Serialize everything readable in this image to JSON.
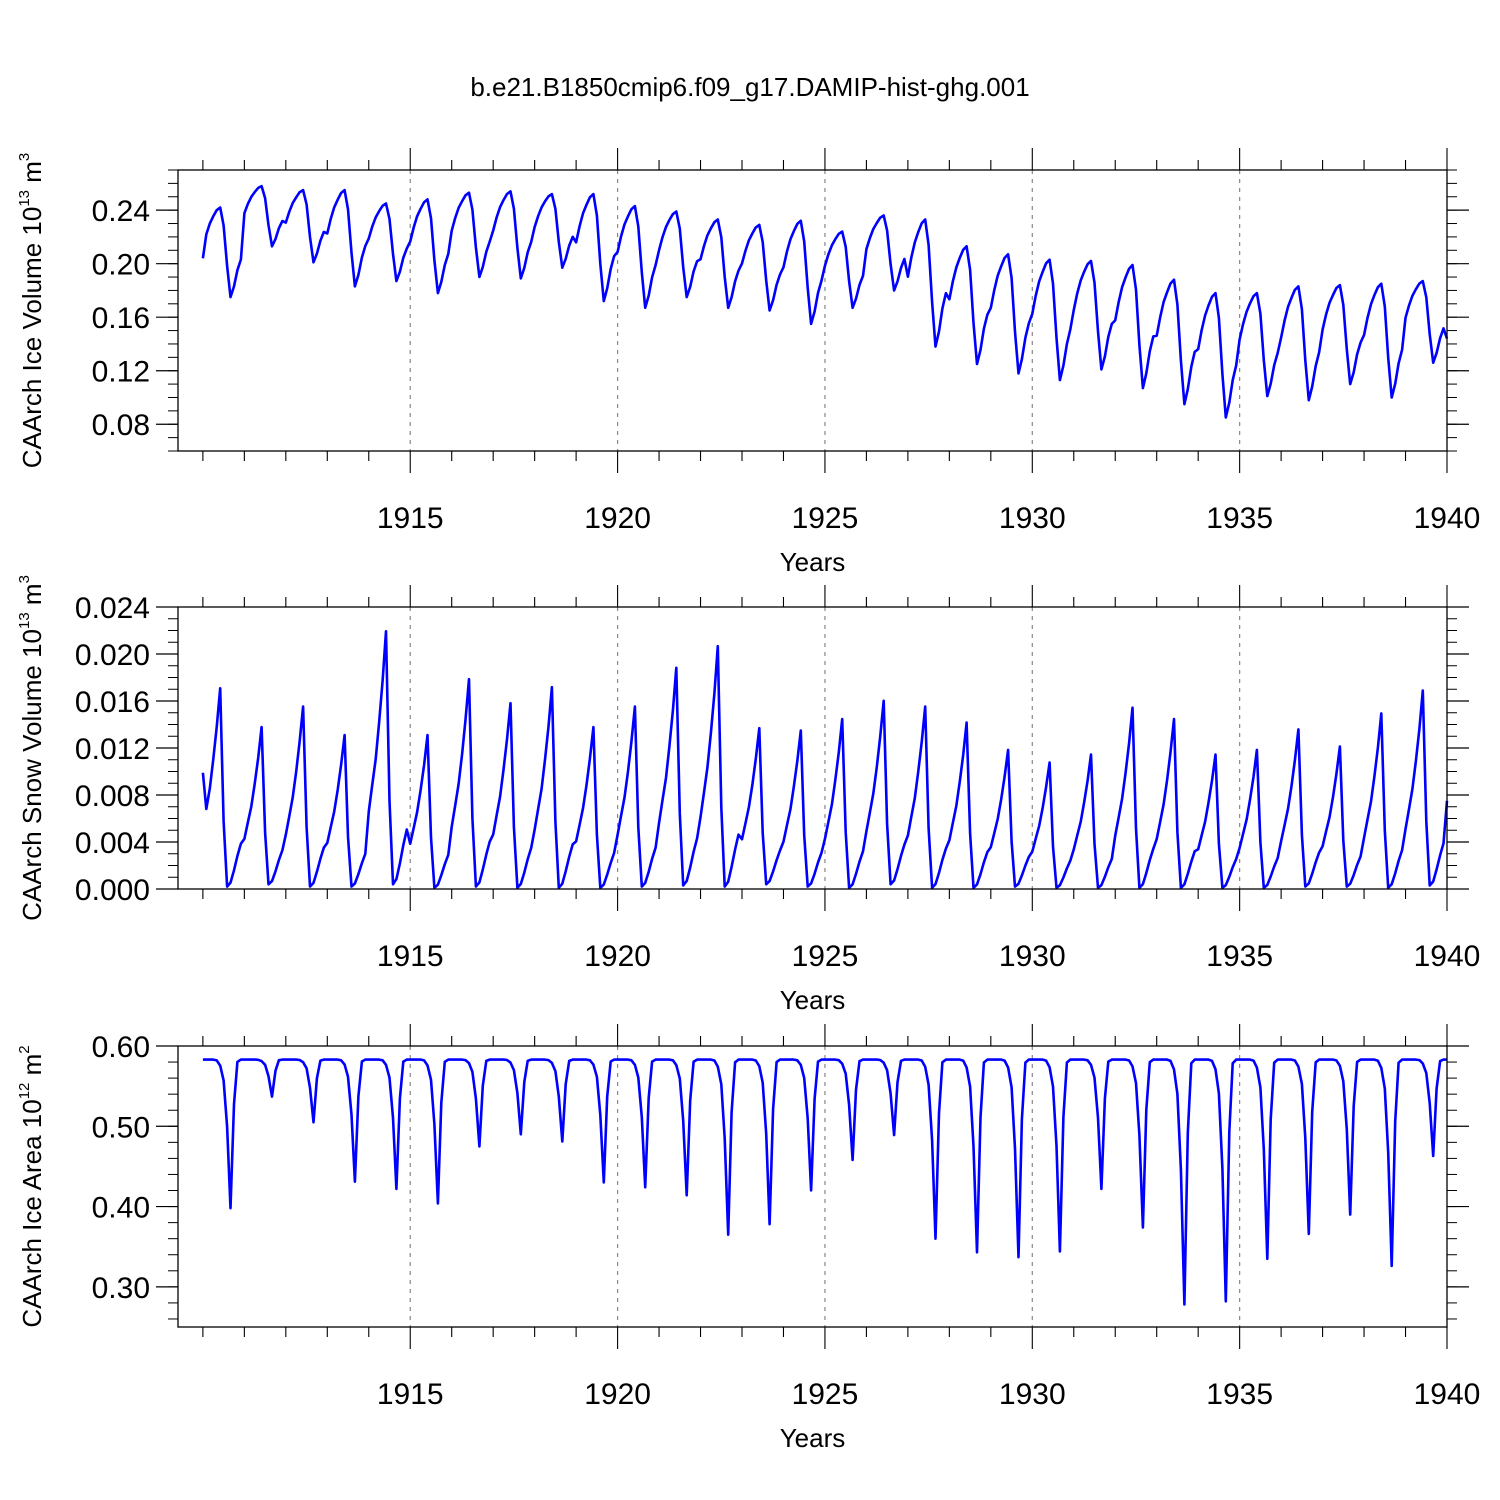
{
  "figure_title": "b.e21.B1850cmip6.f09_g17.DAMIP-hist-ghg.001",
  "chart_data": [
    {
      "type": "line",
      "title": "b.e21.B1850cmip6.f09_g17.DAMIP-hist-ghg.001",
      "xlabel": "Years",
      "ylabel_main": "CAArch Ice Volume 10",
      "ylabel_exp": "13",
      "ylabel_unit": " m",
      "ylabel_unit_exp": "3",
      "xlim": [
        1909.4,
        1940.0
      ],
      "ylim": [
        0.06,
        0.27
      ],
      "xticks": [
        1915,
        1920,
        1925,
        1930,
        1935,
        1940
      ],
      "xtick_labels": [
        "1915",
        "1920",
        "1925",
        "1930",
        "1935",
        "1940"
      ],
      "yticks": [
        0.08,
        0.12,
        0.16,
        0.2,
        0.24
      ],
      "ytick_labels": [
        "0.08",
        "0.12",
        "0.16",
        "0.20",
        "0.24"
      ],
      "minor_y_step": 0.01,
      "series": [
        {
          "name": "CAArch Ice Volume",
          "color": "#0000ff",
          "start_year": 1910.0,
          "annual_cycle": true,
          "annual_max": [
            0.242,
            0.258,
            0.255,
            0.255,
            0.245,
            0.248,
            0.253,
            0.254,
            0.252,
            0.252,
            0.243,
            0.239,
            0.233,
            0.229,
            0.232,
            0.224,
            0.236,
            0.233,
            0.213,
            0.207,
            0.203,
            0.202,
            0.199,
            0.188,
            0.178,
            0.178,
            0.183,
            0.184,
            0.185,
            0.187
          ],
          "annual_min": [
            0.175,
            0.213,
            0.201,
            0.183,
            0.187,
            0.178,
            0.19,
            0.189,
            0.197,
            0.172,
            0.167,
            0.175,
            0.167,
            0.165,
            0.155,
            0.167,
            0.18,
            0.138,
            0.125,
            0.118,
            0.113,
            0.121,
            0.107,
            0.095,
            0.085,
            0.101,
            0.098,
            0.11,
            0.1,
            0.126
          ],
          "start_value": 0.204,
          "end_value": 0.144
        }
      ]
    },
    {
      "type": "line",
      "title": "",
      "xlabel": "Years",
      "ylabel_main": "CAArch Snow Volume 10",
      "ylabel_exp": "13",
      "ylabel_unit": " m",
      "ylabel_unit_exp": "3",
      "xlim": [
        1909.4,
        1940.0
      ],
      "ylim": [
        0.0,
        0.024
      ],
      "xticks": [
        1915,
        1920,
        1925,
        1930,
        1935,
        1940
      ],
      "xtick_labels": [
        "1915",
        "1920",
        "1925",
        "1930",
        "1935",
        "1940"
      ],
      "yticks": [
        0.0,
        0.004,
        0.008,
        0.012,
        0.016,
        0.02,
        0.024
      ],
      "ytick_labels": [
        "0.000",
        "0.004",
        "0.008",
        "0.012",
        "0.016",
        "0.020",
        "0.024"
      ],
      "minor_y_step": 0.001,
      "series": [
        {
          "name": "CAArch Snow Volume",
          "color": "#0000ff",
          "start_year": 1910.0,
          "annual_cycle": true,
          "annual_max": [
            0.0176,
            0.0142,
            0.016,
            0.0135,
            0.0226,
            0.0135,
            0.0184,
            0.0163,
            0.0177,
            0.0142,
            0.016,
            0.0194,
            0.0213,
            0.0141,
            0.0139,
            0.0149,
            0.0165,
            0.016,
            0.0146,
            0.0122,
            0.0111,
            0.0118,
            0.0159,
            0.0149,
            0.0118,
            0.0122,
            0.014,
            0.0125,
            0.0154,
            0.0174
          ],
          "annual_min": [
            0.0002,
            0.0004,
            0.0002,
            0.0002,
            0.0004,
            0.0001,
            0.0002,
            0.0001,
            0.0001,
            0.0001,
            0.0002,
            0.0003,
            0.0002,
            0.0004,
            0.0002,
            0.0001,
            0.0004,
            0.0001,
            0.0001,
            0.0002,
            0.0001,
            0.0001,
            0.0001,
            0.0001,
            0.0001,
            0.0001,
            0.0002,
            0.0002,
            0.0001,
            0.0003
          ],
          "start_value": 0.0099,
          "end_value": 0.0075
        }
      ]
    },
    {
      "type": "line",
      "title": "",
      "xlabel": "Years",
      "ylabel_main": "CAArch Ice Area 10",
      "ylabel_exp": "12",
      "ylabel_unit": " m",
      "ylabel_unit_exp": "2",
      "xlim": [
        1909.4,
        1940.0
      ],
      "ylim": [
        0.25,
        0.6
      ],
      "xticks": [
        1915,
        1920,
        1925,
        1930,
        1935,
        1940
      ],
      "xtick_labels": [
        "1915",
        "1920",
        "1925",
        "1930",
        "1935",
        "1940"
      ],
      "yticks": [
        0.3,
        0.4,
        0.5,
        0.6
      ],
      "ytick_labels": [
        "0.30",
        "0.40",
        "0.50",
        "0.60"
      ],
      "minor_y_step": 0.02,
      "series": [
        {
          "name": "CAArch Ice Area",
          "color": "#0000ff",
          "start_year": 1910.0,
          "annual_cycle": true,
          "annual_max": [
            0.583,
            0.583,
            0.583,
            0.583,
            0.583,
            0.583,
            0.583,
            0.583,
            0.583,
            0.583,
            0.583,
            0.583,
            0.583,
            0.583,
            0.583,
            0.583,
            0.583,
            0.583,
            0.583,
            0.583,
            0.583,
            0.583,
            0.583,
            0.583,
            0.583,
            0.583,
            0.583,
            0.583,
            0.583,
            0.583
          ],
          "annual_min": [
            0.398,
            0.537,
            0.505,
            0.431,
            0.422,
            0.404,
            0.475,
            0.49,
            0.481,
            0.43,
            0.424,
            0.414,
            0.365,
            0.378,
            0.42,
            0.458,
            0.489,
            0.36,
            0.343,
            0.337,
            0.344,
            0.422,
            0.374,
            0.278,
            0.282,
            0.335,
            0.366,
            0.39,
            0.326,
            0.463
          ],
          "start_value": 0.583,
          "end_value": 0.583
        }
      ]
    }
  ]
}
